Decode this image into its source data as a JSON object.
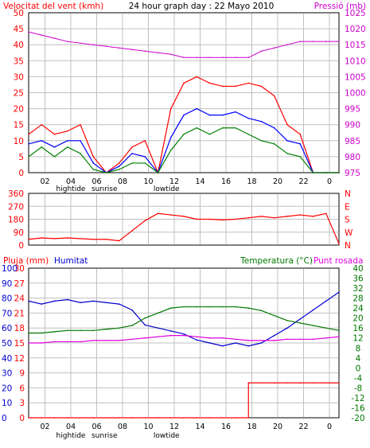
{
  "colors": {
    "wind_max": "#ff0000",
    "wind_avg": "#0000ff",
    "wind_min": "#008000",
    "pressure": "#cc00cc",
    "direction": "#ff0000",
    "rain": "#ff0000",
    "humidity": "#0000cc",
    "temperature": "#007700",
    "dewpoint": "#dd00dd",
    "grid": "#c0c0c0",
    "frame": "#000000",
    "title_text": "#000000"
  },
  "header": {
    "title": "24 hour graph day : 22 Mayo 2010"
  },
  "x_ticks": [
    "02",
    "04",
    "06",
    "08",
    "10",
    "12",
    "14",
    "16",
    "18",
    "20",
    "22",
    "0"
  ],
  "tide_labels": [
    {
      "text": "hightide",
      "hour": 4.0
    },
    {
      "text": "sunrise",
      "hour": 6.6
    },
    {
      "text": "lowtide",
      "hour": 11.4
    }
  ],
  "chart_data": [
    {
      "type": "line",
      "panel": "wind",
      "y_label_left": "Velocitat del vent (kmh)",
      "y_label_right": "Pressió (mb)",
      "y_ticks_left": [
        "0",
        "5",
        "10",
        "15",
        "20",
        "25",
        "30",
        "35",
        "40",
        "45",
        "50"
      ],
      "y_ticks_right": [
        "975",
        "980",
        "985",
        "990",
        "995",
        "1000",
        "1005",
        "1010",
        "1015",
        "1020",
        "1025"
      ],
      "ylim_left": [
        0,
        50
      ],
      "ylim_right": [
        975,
        1025
      ],
      "xlim_hours": [
        0,
        24
      ],
      "x": [
        0,
        1,
        2,
        3,
        4,
        5,
        6,
        7,
        8,
        9,
        10,
        11,
        12,
        13,
        14,
        15,
        16,
        17,
        18,
        19,
        20,
        21,
        22,
        23,
        24
      ],
      "series": [
        {
          "name": "wind_max",
          "axis": "left",
          "values": [
            12,
            15,
            12,
            13,
            15,
            5,
            0,
            3,
            8,
            10,
            0,
            20,
            28,
            30,
            28,
            27,
            27,
            28,
            27,
            24,
            15,
            12,
            0,
            0,
            0
          ]
        },
        {
          "name": "wind_avg",
          "axis": "left",
          "values": [
            9,
            10,
            8,
            10,
            10,
            3,
            0,
            2,
            6,
            5,
            0,
            11,
            18,
            20,
            18,
            18,
            19,
            17,
            16,
            14,
            10,
            9,
            0,
            0,
            0
          ]
        },
        {
          "name": "wind_min",
          "axis": "left",
          "values": [
            5,
            8,
            5,
            8,
            6,
            1,
            0,
            1,
            3,
            3,
            0,
            7,
            12,
            14,
            12,
            14,
            14,
            12,
            10,
            9,
            6,
            5,
            0,
            0,
            0
          ]
        },
        {
          "name": "pressure",
          "axis": "right",
          "values": [
            1019,
            1018,
            1017,
            1016,
            1015.5,
            1015,
            1014.5,
            1014,
            1013.5,
            1013,
            1012.5,
            1012,
            1011,
            1011,
            1011,
            1011,
            1011,
            1011,
            1013,
            1014,
            1015,
            1016,
            1016,
            1016,
            1016
          ]
        }
      ]
    },
    {
      "type": "line",
      "panel": "direction",
      "y_ticks_left": [
        "0",
        "90",
        "180",
        "270",
        "360"
      ],
      "compass_right": [
        "N",
        "W",
        "S",
        "E",
        "N"
      ],
      "ylim": [
        0,
        360
      ],
      "xlim_hours": [
        0,
        24
      ],
      "x": [
        0,
        1,
        2,
        3,
        4,
        5,
        6,
        7,
        8,
        9,
        10,
        11,
        12,
        13,
        14,
        15,
        16,
        17,
        18,
        19,
        20,
        21,
        22,
        23,
        24
      ],
      "series": [
        {
          "name": "direction",
          "values": [
            40,
            50,
            45,
            50,
            45,
            40,
            40,
            30,
            100,
            170,
            220,
            210,
            200,
            180,
            180,
            175,
            180,
            190,
            200,
            190,
            200,
            210,
            200,
            220,
            10
          ]
        }
      ]
    },
    {
      "type": "line",
      "panel": "rain_humidity_temp",
      "y_label_left": "Pluja (mm)",
      "y_label_left2": "Humitat",
      "y_label_right": "Temperatura (°C)",
      "y_label_right2": "Punt rosada",
      "y_ticks_left": [
        "0",
        "3",
        "6",
        "9",
        "12",
        "15",
        "18",
        "21",
        "24",
        "27",
        "30"
      ],
      "y_ticks_left2": [
        "0",
        "10",
        "20",
        "30",
        "40",
        "50",
        "60",
        "70",
        "80",
        "90",
        "100"
      ],
      "y_ticks_right": [
        "-20",
        "-16",
        "-12",
        "-8",
        "-4",
        "0",
        "4",
        "8",
        "12",
        "16",
        "20",
        "24",
        "28",
        "32",
        "36",
        "40"
      ],
      "ylim_rain": [
        0,
        30
      ],
      "ylim_humidity": [
        0,
        100
      ],
      "ylim_temp": [
        -20,
        40
      ],
      "xlim_hours": [
        0,
        24
      ],
      "x": [
        0,
        1,
        2,
        3,
        4,
        5,
        6,
        7,
        8,
        9,
        10,
        11,
        12,
        13,
        14,
        15,
        16,
        17,
        18,
        19,
        20,
        21,
        22,
        23,
        24
      ],
      "series": [
        {
          "name": "humidity",
          "axis": "left2",
          "values": [
            78,
            76,
            78,
            79,
            77,
            78,
            77,
            76,
            72,
            62,
            60,
            58,
            56,
            52,
            50,
            48,
            50,
            48,
            50,
            55,
            60,
            66,
            72,
            78,
            84
          ]
        },
        {
          "name": "temperature",
          "axis": "right",
          "values": [
            14,
            14,
            14.5,
            15,
            15,
            15,
            15.5,
            16,
            17,
            20,
            22,
            24,
            24.5,
            24.5,
            24.5,
            24.5,
            24.5,
            24,
            23,
            21,
            19,
            18,
            17,
            16,
            15
          ]
        },
        {
          "name": "dewpoint",
          "axis": "right",
          "values": [
            10,
            10,
            10.5,
            10.5,
            10.5,
            11,
            11,
            11,
            11.5,
            12,
            12.5,
            13,
            13,
            12.5,
            12,
            12,
            11.5,
            11,
            11,
            11,
            11.5,
            11.5,
            11.5,
            12,
            12.5
          ]
        },
        {
          "name": "rain",
          "axis": "left",
          "values": [
            0,
            0,
            0,
            0,
            0,
            0,
            0,
            0,
            0,
            0,
            0,
            0,
            0,
            0,
            0,
            0,
            0,
            7,
            7,
            7,
            7,
            7,
            7,
            7,
            7
          ]
        }
      ]
    }
  ]
}
